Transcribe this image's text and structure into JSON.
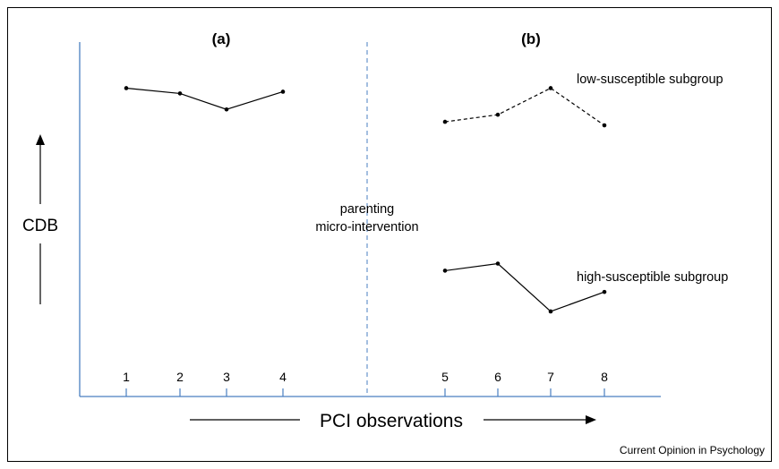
{
  "panels": {
    "a": "(a)",
    "b": "(b)"
  },
  "y_axis_label": "CDB",
  "x_axis_label": "PCI observations",
  "intervention_label": [
    "parenting",
    "micro-intervention"
  ],
  "subgroups": {
    "low": "low-susceptible subgroup",
    "high": "high-susceptible subgroup"
  },
  "credit": "Current Opinion in Psychology",
  "colors": {
    "axis": "#4a7fc1",
    "divider": "#4a7fc1",
    "lines": "#000000",
    "frame": "#000000"
  },
  "chart_data": {
    "type": "line",
    "x_ticks": [
      "1",
      "2",
      "3",
      "4",
      "5",
      "6",
      "7",
      "8"
    ],
    "y_scale": "relative (unlabeled)",
    "divider_after_observation": 4,
    "series": [
      {
        "panel": "a",
        "style": "solid",
        "x": [
          1,
          2,
          3,
          4
        ],
        "y": [
          8.7,
          8.55,
          8.1,
          8.6
        ]
      },
      {
        "panel": "b",
        "name": "low-susceptible subgroup",
        "style": "dashed",
        "x": [
          5,
          6,
          7,
          8
        ],
        "y": [
          7.75,
          7.95,
          8.7,
          7.65
        ]
      },
      {
        "panel": "b",
        "name": "high-susceptible subgroup",
        "style": "solid",
        "x": [
          5,
          6,
          7,
          8
        ],
        "y": [
          3.55,
          3.75,
          2.4,
          2.95
        ]
      }
    ]
  }
}
